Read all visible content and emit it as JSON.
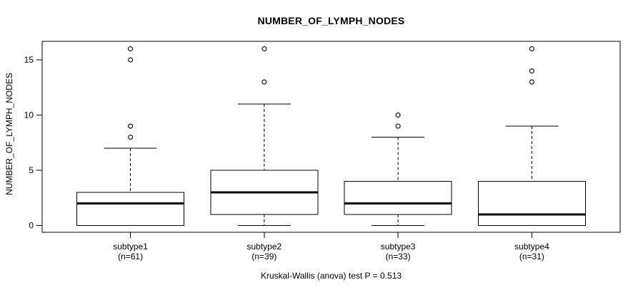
{
  "chart_data": {
    "type": "boxplot",
    "title": "NUMBER_OF_LYMPH_NODES",
    "ylabel": "NUMBER_OF_LYMPH_NODES",
    "xlabel": "",
    "caption": "Kruskal-Wallis (anova) test P = 0.513",
    "y_ticks": [
      0,
      5,
      10,
      15
    ],
    "ylim": [
      -0.61,
      16.68
    ],
    "grid": false,
    "legend": "none",
    "groups": [
      {
        "label": "subtype1",
        "sublabel": "(n=61)",
        "n": 61,
        "whisker_low": 0,
        "q1": 0,
        "median": 2,
        "q3": 3,
        "whisker_high": 7,
        "outliers": [
          8,
          9,
          15,
          16
        ]
      },
      {
        "label": "subtype2",
        "sublabel": "(n=39)",
        "n": 39,
        "whisker_low": 0,
        "q1": 1,
        "median": 3,
        "q3": 5,
        "whisker_high": 11,
        "outliers": [
          13,
          16
        ]
      },
      {
        "label": "subtype3",
        "sublabel": "(n=33)",
        "n": 33,
        "whisker_low": 0,
        "q1": 1,
        "median": 2,
        "q3": 4,
        "whisker_high": 8,
        "outliers": [
          9,
          10
        ]
      },
      {
        "label": "subtype4",
        "sublabel": "(n=31)",
        "n": 31,
        "whisker_low": 0,
        "q1": 0,
        "median": 1,
        "q3": 4,
        "whisker_high": 9,
        "outliers": [
          13,
          14,
          16
        ]
      }
    ],
    "colors": {
      "line": "#000000",
      "box_fill": "#ffffff",
      "background": "#ffffff"
    }
  }
}
